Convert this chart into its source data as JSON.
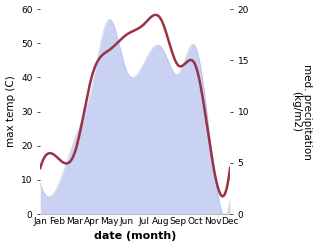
{
  "months": [
    "Jan",
    "Feb",
    "Mar",
    "Apr",
    "May",
    "Jun",
    "Jul",
    "Aug",
    "Sep",
    "Oct",
    "Nov",
    "Dec"
  ],
  "temp_area": [
    9,
    8,
    22,
    37,
    57,
    42,
    44,
    49,
    41,
    49,
    16,
    4
  ],
  "precip_line": [
    4.5,
    5.5,
    6.0,
    13.5,
    16.0,
    17.5,
    18.5,
    19.0,
    14.5,
    14.5,
    5.0,
    4.5
  ],
  "temp_color_fill": "#b8c4ef",
  "temp_color_edge": "#9aa8d8",
  "precip_color": "#993344",
  "left_ylabel": "max temp (C)",
  "right_ylabel": "med. precipitation\n(kg/m2)",
  "xlabel": "date (month)",
  "left_ylim": [
    0,
    60
  ],
  "right_ylim": [
    0,
    20
  ],
  "left_yticks": [
    0,
    10,
    20,
    30,
    40,
    50,
    60
  ],
  "right_yticks": [
    0,
    5,
    10,
    15,
    20
  ],
  "bg_color": "#ffffff",
  "axis_fontsize": 7.5,
  "tick_fontsize": 6.5,
  "xlabel_fontsize": 8,
  "linewidth": 1.8
}
